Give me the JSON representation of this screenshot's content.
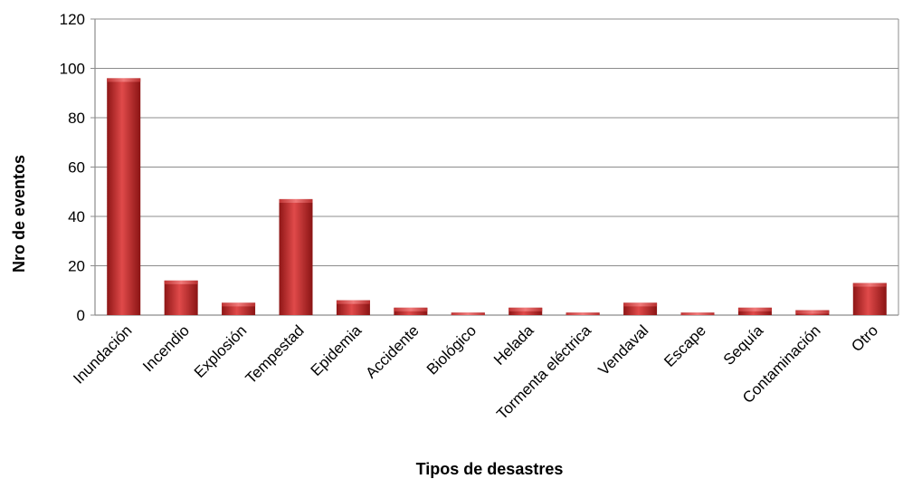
{
  "chart_data": {
    "type": "bar",
    "title": "",
    "xlabel": "Tipos de desastres",
    "ylabel": "Nro de eventos",
    "ylim": [
      0,
      120
    ],
    "yticks": [
      0,
      20,
      40,
      60,
      80,
      100,
      120
    ],
    "grid": true,
    "legend": "none",
    "bar_color": "#c0282a",
    "categories": [
      "Inundación",
      "Incendio",
      "Explosión",
      "Tempestad",
      "Epidemia",
      "Accidente",
      "Biológico",
      "Helada",
      "Tormenta eléctrica",
      "Vendaval",
      "Escape",
      "Sequía",
      "Contaminación",
      "Otro"
    ],
    "values": [
      96,
      14,
      5,
      47,
      6,
      3,
      1,
      3,
      1,
      5,
      1,
      3,
      2,
      13
    ]
  }
}
